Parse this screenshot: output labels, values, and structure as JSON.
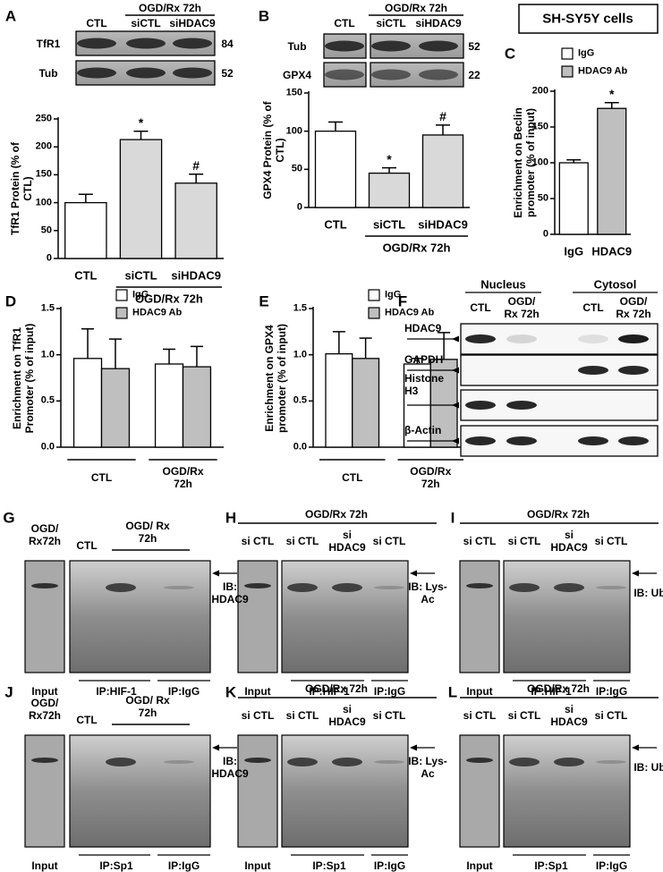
{
  "title_box": "SH-SY5Y cells",
  "chart_data": [
    {
      "type": "bar",
      "panel": "A",
      "ylabel": "TfR1 Protein (% of CTL)",
      "categories": [
        "CTL",
        "siCTL",
        "siHDAC9"
      ],
      "values": [
        100,
        213,
        135
      ],
      "errors": [
        15,
        15,
        16
      ],
      "colors": [
        "#ffffff",
        "#d9d9d9",
        "#d9d9d9"
      ],
      "annotations": [
        {
          "category": "siCTL",
          "text": "*"
        },
        {
          "category": "siHDAC9",
          "text": "#"
        }
      ],
      "group_label": "OGD/Rx 72h",
      "ylim": [
        0,
        250
      ],
      "yticks": [
        0,
        50,
        100,
        150,
        200,
        250
      ]
    },
    {
      "type": "bar",
      "panel": "B",
      "ylabel": "GPX4 Protein (% of CTL)",
      "categories": [
        "CTL",
        "siCTL",
        "siHDAC9"
      ],
      "values": [
        100,
        45,
        95
      ],
      "errors": [
        12,
        7,
        13
      ],
      "colors": [
        "#ffffff",
        "#d9d9d9",
        "#d9d9d9"
      ],
      "annotations": [
        {
          "category": "siCTL",
          "text": "*"
        },
        {
          "category": "siHDAC9",
          "text": "#"
        }
      ],
      "group_label": "OGD/Rx 72h",
      "ylim": [
        0,
        150
      ],
      "yticks": [
        0,
        50,
        100,
        150
      ]
    },
    {
      "type": "bar",
      "panel": "C",
      "ylabel": "Enrichment on Beclin promoter (% of input)",
      "categories": [
        "IgG",
        "HDAC9"
      ],
      "values": [
        100,
        176
      ],
      "errors": [
        4,
        8
      ],
      "colors": [
        "#ffffff",
        "#bfbfbf"
      ],
      "annotations": [
        {
          "category": "HDAC9",
          "text": "*"
        }
      ],
      "legend": [
        {
          "name": "IgG",
          "color": "#ffffff"
        },
        {
          "name": "HDAC9 Ab",
          "color": "#bfbfbf"
        }
      ],
      "ylim": [
        0,
        200
      ],
      "yticks": [
        0,
        50,
        100,
        150,
        200
      ]
    },
    {
      "type": "grouped_bar",
      "panel": "D",
      "ylabel": "Enrichment on TfR1 Promoter (% of input)",
      "categories": [
        "CTL",
        "OGD/Rx 72h"
      ],
      "series": [
        {
          "name": "IgG",
          "color": "#ffffff",
          "values": [
            0.96,
            0.9
          ],
          "errors": [
            0.32,
            0.16
          ]
        },
        {
          "name": "HDAC9 Ab",
          "color": "#bfbfbf",
          "values": [
            0.85,
            0.87
          ],
          "errors": [
            0.32,
            0.22
          ]
        }
      ],
      "ylim": [
        0,
        1.5
      ],
      "yticks": [
        {
          "value": 0,
          "label": "0.0"
        },
        0.5,
        {
          "value": 1,
          "label": "1.0"
        },
        1.5
      ]
    },
    {
      "type": "grouped_bar",
      "panel": "E",
      "ylabel": "Enrichment on GPX4 promoter (% of input)",
      "categories": [
        "CTL",
        "OGD/Rx 72h"
      ],
      "series": [
        {
          "name": "IgG",
          "color": "#ffffff",
          "values": [
            1.01,
            0.9
          ],
          "errors": [
            0.24,
            0.06
          ]
        },
        {
          "name": "HDAC9 Ab",
          "color": "#bfbfbf",
          "values": [
            0.96,
            0.95
          ],
          "errors": [
            0.22,
            0.29
          ]
        }
      ],
      "ylim": [
        0,
        1.5
      ],
      "yticks": [
        {
          "value": 0,
          "label": "0.0"
        },
        0.5,
        {
          "value": 1,
          "label": "1.0"
        },
        1.5
      ]
    }
  ],
  "blots_top": [
    {
      "group": "OGD/Rx 72h",
      "lanes": [
        "CTL",
        "siCTL",
        "siHDAC9"
      ],
      "rows": [
        {
          "name": "TfR1",
          "size": 84
        },
        {
          "name": "Tub",
          "size": 52
        }
      ]
    },
    {
      "group": "OGD/Rx 72h",
      "lanes": [
        "CTL",
        "siCTL",
        "siHDAC9"
      ],
      "rows": [
        {
          "name": "Tub",
          "size": 52
        },
        {
          "name": "GPX4",
          "size": 22
        }
      ]
    }
  ],
  "fractionation": {
    "panel": "F",
    "groups": [
      "Nucleus",
      "Cytosol"
    ],
    "lanes": [
      "CTL",
      "OGD/ Rx 72h",
      "CTL",
      "OGD/ Rx 72h"
    ],
    "rows": [
      "HDAC9",
      "GAPDH",
      "Histone H3",
      "β-Actin"
    ]
  },
  "ip_panels": [
    {
      "panel": "G",
      "lanes": [
        "OGD/ Rx72h",
        "CTL"
      ],
      "group": "OGD/ Rx 72h",
      "ib": "IB: HDAC9",
      "input": "Input",
      "ip": [
        "IP:HIF-1",
        "IP:IgG"
      ]
    },
    {
      "panel": "H",
      "group": "OGD/Rx 72h",
      "lanes": [
        "si CTL",
        "si CTL",
        "si HDAC9",
        "si CTL"
      ],
      "ib": "IB: Lys-Ac",
      "input": "Input",
      "ip": [
        "IP:HIF-1",
        "IP:IgG"
      ]
    },
    {
      "panel": "I",
      "group": "OGD/Rx 72h",
      "lanes": [
        "si CTL",
        "si CTL",
        "si HDAC9",
        "si CTL"
      ],
      "ib": "IB: Ub",
      "input": "Input",
      "ip": [
        "IP:HIF-1",
        "IP:IgG"
      ]
    },
    {
      "panel": "J",
      "lanes": [
        "OGD/ Rx72h",
        "CTL"
      ],
      "group": "OGD/ Rx 72h",
      "ib": "IB: HDAC9",
      "input": "Input",
      "ip": [
        "IP:Sp1",
        "IP:IgG"
      ]
    },
    {
      "panel": "K",
      "group": "OGD/Rx 72h",
      "lanes": [
        "si CTL",
        "si CTL",
        "si HDAC9",
        "si CTL"
      ],
      "ib": "IB: Lys-Ac",
      "input": "Input",
      "ip": [
        "IP:Sp1",
        "IP:IgG"
      ]
    },
    {
      "panel": "L",
      "group": "OGD/Rx 72h",
      "lanes": [
        "si CTL",
        "si CTL",
        "si HDAC9",
        "si CTL"
      ],
      "ib": "IB: Ub",
      "input": "Input",
      "ip": [
        "IP:Sp1",
        "IP:IgG"
      ]
    }
  ]
}
